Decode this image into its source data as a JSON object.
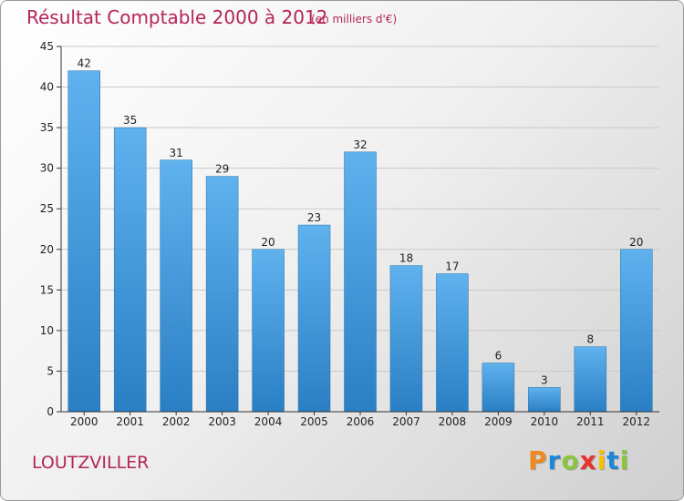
{
  "header": {
    "title": "Résultat Comptable 2000 à 2012",
    "subtitle": "(en milliers d'€)"
  },
  "commune": "LOUTZVILLER",
  "logo": {
    "letters": [
      "P",
      "r",
      "o",
      "x",
      "i",
      "t",
      "i"
    ],
    "colors": [
      "#f08a1c",
      "#1e88d6",
      "#8cc63f",
      "#e8322b",
      "#f5c400",
      "#1e88d6",
      "#8cc63f"
    ]
  },
  "colors": {
    "bar_top": "#5fb2ee",
    "bar_bottom": "#2a7fc4",
    "grid": "#c9c9c9",
    "axis": "#333333",
    "title": "#b5245a"
  },
  "chart_data": {
    "type": "bar",
    "title": "Résultat Comptable 2000 à 2012",
    "subtitle": "(en milliers d'€)",
    "categories": [
      "2000",
      "2001",
      "2002",
      "2003",
      "2004",
      "2005",
      "2006",
      "2007",
      "2008",
      "2009",
      "2010",
      "2011",
      "2012"
    ],
    "values": [
      42,
      35,
      31,
      29,
      20,
      23,
      32,
      18,
      17,
      6,
      3,
      8,
      20
    ],
    "ylim": [
      0,
      45
    ],
    "yticks": [
      0,
      5,
      10,
      15,
      20,
      25,
      30,
      35,
      40,
      45
    ],
    "xlabel": "",
    "ylabel": "",
    "grid": true,
    "data_labels": true
  }
}
